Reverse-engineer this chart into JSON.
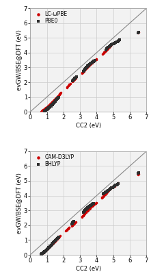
{
  "top_panel": {
    "series1_label": "PBE0",
    "series1_color": "#2d2d2d",
    "series1_marker": "s",
    "series2_label": "LC-ωPBE",
    "series2_color": "#cc0000",
    "series2_marker": "o",
    "series1_x": [
      0.85,
      0.87,
      0.9,
      0.92,
      0.95,
      0.97,
      1.0,
      1.02,
      1.05,
      1.08,
      1.1,
      1.12,
      1.15,
      1.17,
      1.2,
      1.22,
      1.25,
      1.28,
      1.3,
      1.33,
      1.35,
      1.38,
      1.4,
      1.43,
      1.45,
      1.48,
      1.5,
      1.52,
      1.55,
      1.57,
      1.6,
      1.62,
      1.65,
      1.68,
      1.7,
      2.55,
      2.58,
      2.62,
      2.65,
      2.68,
      2.72,
      2.75,
      2.78,
      3.2,
      3.25,
      3.28,
      3.3,
      3.33,
      3.35,
      3.38,
      3.4,
      3.43,
      3.45,
      3.48,
      3.5,
      3.53,
      3.55,
      3.58,
      3.6,
      3.63,
      3.65,
      3.68,
      3.7,
      3.73,
      3.75,
      3.78,
      3.8,
      3.83,
      3.85,
      3.88,
      3.9,
      4.55,
      4.6,
      4.65,
      4.7,
      4.75,
      4.8,
      4.85,
      4.9,
      4.95,
      5.0,
      5.05,
      5.1,
      5.15,
      5.2,
      5.25,
      5.3,
      5.35,
      5.4,
      6.5,
      6.55
    ],
    "series1_y": [
      0.05,
      0.06,
      0.08,
      0.1,
      0.12,
      0.14,
      0.16,
      0.18,
      0.2,
      0.23,
      0.25,
      0.27,
      0.3,
      0.32,
      0.35,
      0.37,
      0.4,
      0.43,
      0.46,
      0.49,
      0.52,
      0.55,
      0.58,
      0.62,
      0.65,
      0.68,
      0.72,
      0.75,
      0.78,
      0.82,
      0.85,
      0.88,
      0.92,
      0.95,
      0.98,
      2.1,
      2.14,
      2.18,
      2.22,
      2.26,
      2.3,
      2.34,
      2.38,
      2.75,
      2.8,
      2.84,
      2.88,
      2.92,
      2.96,
      3.0,
      3.04,
      3.07,
      3.1,
      3.13,
      3.15,
      3.18,
      3.2,
      3.22,
      3.24,
      3.26,
      3.28,
      3.3,
      3.32,
      3.34,
      3.36,
      3.38,
      3.4,
      3.42,
      3.44,
      3.46,
      3.48,
      4.2,
      4.25,
      4.3,
      4.35,
      4.4,
      4.45,
      4.5,
      4.55,
      4.58,
      4.6,
      4.62,
      4.65,
      4.68,
      4.72,
      4.75,
      4.78,
      4.82,
      4.85,
      5.35,
      5.4
    ],
    "series2_x": [
      0.65,
      0.68,
      0.7,
      0.73,
      0.75,
      0.78,
      0.8,
      0.82,
      0.85,
      0.87,
      0.9,
      0.92,
      0.95,
      0.97,
      1.0,
      1.02,
      1.05,
      1.07,
      1.1,
      1.12,
      1.15,
      1.17,
      1.2,
      1.22,
      1.25,
      1.27,
      1.3,
      1.32,
      1.35,
      1.37,
      1.4,
      1.42,
      1.45,
      1.47,
      1.5,
      1.52,
      1.55,
      1.57,
      1.6,
      1.62,
      1.65,
      1.67,
      1.7,
      1.72,
      1.75,
      1.77,
      1.8,
      1.82,
      1.85,
      2.2,
      2.23,
      2.25,
      2.28,
      2.3,
      2.33,
      2.35,
      2.38,
      2.4,
      2.55,
      2.58,
      2.6,
      2.63,
      2.65,
      2.68,
      2.7,
      2.73,
      2.75,
      3.1,
      3.13,
      3.15,
      3.18,
      3.2,
      3.23,
      3.25,
      3.28,
      3.3,
      3.33,
      3.35,
      3.38,
      3.4,
      3.43,
      3.45,
      3.48,
      3.5,
      3.53,
      3.55,
      3.57,
      3.6,
      3.62,
      3.65,
      3.67,
      3.7,
      3.72,
      3.75,
      3.77,
      3.8,
      3.82,
      3.85,
      3.87,
      3.9,
      3.92,
      3.95,
      3.97,
      4.0,
      4.35,
      4.38,
      4.4,
      4.43,
      4.45,
      4.48,
      4.5,
      4.53,
      4.55,
      4.58,
      4.6,
      4.63,
      4.65,
      4.68,
      4.7,
      4.73,
      4.75,
      4.78,
      4.8,
      4.83,
      4.85,
      4.88,
      4.9,
      5.1,
      5.15,
      5.2,
      5.25,
      5.3,
      6.5,
      6.55
    ],
    "series2_y": [
      0.03,
      0.05,
      0.07,
      0.09,
      0.11,
      0.13,
      0.15,
      0.17,
      0.19,
      0.22,
      0.24,
      0.26,
      0.28,
      0.31,
      0.33,
      0.35,
      0.38,
      0.4,
      0.43,
      0.45,
      0.48,
      0.51,
      0.53,
      0.56,
      0.58,
      0.61,
      0.64,
      0.67,
      0.7,
      0.72,
      0.75,
      0.78,
      0.81,
      0.84,
      0.87,
      0.9,
      0.93,
      0.96,
      0.99,
      1.02,
      1.05,
      1.08,
      1.11,
      1.14,
      1.17,
      1.2,
      1.23,
      1.26,
      1.3,
      1.65,
      1.68,
      1.72,
      1.75,
      1.78,
      1.82,
      1.85,
      1.88,
      1.92,
      2.05,
      2.08,
      2.12,
      2.15,
      2.18,
      2.22,
      2.25,
      2.28,
      2.32,
      2.6,
      2.63,
      2.66,
      2.69,
      2.72,
      2.75,
      2.78,
      2.82,
      2.85,
      2.88,
      2.91,
      2.94,
      2.97,
      3.0,
      3.03,
      3.06,
      3.09,
      3.12,
      3.15,
      3.17,
      3.2,
      3.22,
      3.25,
      3.27,
      3.3,
      3.32,
      3.35,
      3.37,
      3.4,
      3.42,
      3.44,
      3.46,
      3.48,
      3.5,
      3.52,
      3.54,
      3.56,
      3.9,
      3.93,
      3.96,
      3.99,
      4.02,
      4.05,
      4.08,
      4.11,
      4.14,
      4.17,
      4.2,
      4.23,
      4.26,
      4.29,
      4.32,
      4.35,
      4.38,
      4.41,
      4.44,
      4.47,
      4.5,
      4.53,
      4.56,
      4.68,
      4.72,
      4.76,
      4.8,
      4.84,
      5.35,
      5.4
    ]
  },
  "bottom_panel": {
    "series1_label": "BHLYP",
    "series1_color": "#2d2d2d",
    "series1_marker": "s",
    "series2_label": "CAM-D3LYP",
    "series2_color": "#cc0000",
    "series2_marker": "o",
    "series1_x": [
      0.65,
      0.68,
      0.7,
      0.73,
      0.75,
      0.78,
      0.8,
      0.82,
      0.85,
      0.87,
      0.9,
      0.92,
      0.95,
      0.97,
      1.0,
      1.02,
      1.05,
      1.07,
      1.1,
      1.12,
      1.15,
      1.17,
      1.2,
      1.22,
      1.25,
      1.27,
      1.3,
      1.32,
      1.35,
      1.37,
      1.4,
      1.42,
      1.45,
      1.47,
      1.5,
      1.52,
      1.55,
      1.57,
      1.6,
      1.62,
      1.65,
      1.68,
      1.7,
      2.5,
      2.53,
      2.55,
      2.58,
      2.6,
      2.63,
      3.2,
      3.23,
      3.25,
      3.28,
      3.3,
      3.33,
      3.35,
      3.38,
      3.4,
      3.43,
      3.45,
      3.48,
      3.5,
      3.53,
      3.55,
      3.57,
      3.6,
      3.62,
      3.65,
      3.68,
      3.7,
      3.73,
      3.75,
      3.78,
      3.8,
      4.4,
      4.45,
      4.5,
      4.55,
      4.6,
      4.65,
      4.7,
      4.75,
      4.8,
      4.85,
      4.9,
      4.95,
      5.0,
      5.05,
      5.1,
      5.15,
      5.2,
      5.25,
      5.3,
      6.5,
      6.55
    ],
    "series1_y": [
      0.03,
      0.05,
      0.07,
      0.09,
      0.11,
      0.13,
      0.16,
      0.18,
      0.2,
      0.22,
      0.25,
      0.27,
      0.3,
      0.32,
      0.35,
      0.37,
      0.4,
      0.43,
      0.46,
      0.49,
      0.52,
      0.55,
      0.58,
      0.61,
      0.64,
      0.67,
      0.7,
      0.73,
      0.77,
      0.8,
      0.83,
      0.86,
      0.89,
      0.92,
      0.95,
      0.98,
      1.01,
      1.04,
      1.07,
      1.1,
      1.13,
      1.16,
      1.2,
      2.08,
      2.12,
      2.16,
      2.2,
      2.24,
      2.28,
      2.88,
      2.91,
      2.95,
      2.98,
      3.01,
      3.04,
      3.07,
      3.1,
      3.13,
      3.16,
      3.18,
      3.21,
      3.23,
      3.25,
      3.27,
      3.29,
      3.31,
      3.33,
      3.35,
      3.37,
      3.39,
      3.41,
      3.43,
      3.45,
      3.47,
      4.12,
      4.16,
      4.2,
      4.24,
      4.28,
      4.32,
      4.36,
      4.4,
      4.44,
      4.48,
      4.52,
      4.55,
      4.58,
      4.62,
      4.66,
      4.7,
      4.74,
      4.78,
      4.82,
      5.5,
      5.55
    ],
    "series2_x": [
      0.65,
      0.68,
      0.7,
      0.73,
      0.75,
      0.78,
      0.8,
      0.82,
      0.85,
      0.87,
      0.9,
      0.92,
      0.95,
      0.97,
      1.0,
      1.02,
      1.05,
      1.07,
      1.1,
      1.12,
      1.15,
      1.17,
      1.2,
      1.22,
      1.25,
      1.27,
      1.3,
      1.32,
      1.35,
      1.37,
      1.4,
      1.42,
      1.45,
      1.47,
      1.5,
      1.52,
      1.55,
      1.57,
      1.6,
      1.62,
      1.65,
      1.68,
      1.7,
      1.72,
      1.75,
      1.77,
      1.8,
      2.15,
      2.18,
      2.2,
      2.23,
      2.25,
      2.28,
      2.3,
      2.33,
      2.35,
      2.5,
      2.53,
      2.55,
      2.58,
      2.6,
      2.63,
      2.65,
      2.68,
      2.7,
      2.73,
      3.1,
      3.13,
      3.15,
      3.18,
      3.2,
      3.23,
      3.25,
      3.28,
      3.3,
      3.33,
      3.35,
      3.38,
      3.4,
      3.43,
      3.45,
      3.48,
      3.5,
      3.53,
      3.55,
      3.57,
      3.6,
      3.62,
      3.65,
      3.67,
      3.7,
      3.72,
      3.75,
      3.78,
      3.8,
      3.82,
      3.85,
      3.87,
      3.9,
      3.92,
      3.95,
      3.97,
      4.0,
      4.3,
      4.33,
      4.35,
      4.38,
      4.4,
      4.43,
      4.45,
      4.48,
      4.5,
      4.53,
      4.55,
      4.58,
      4.6,
      4.63,
      4.65,
      4.68,
      4.7,
      4.73,
      4.75,
      4.78,
      4.8,
      4.83,
      4.85,
      4.88,
      4.9,
      5.1,
      5.15,
      5.2,
      5.25,
      5.3,
      6.5,
      6.55
    ],
    "series2_y": [
      0.03,
      0.05,
      0.07,
      0.09,
      0.12,
      0.14,
      0.16,
      0.18,
      0.21,
      0.23,
      0.25,
      0.28,
      0.3,
      0.33,
      0.35,
      0.38,
      0.4,
      0.43,
      0.45,
      0.48,
      0.51,
      0.54,
      0.57,
      0.6,
      0.63,
      0.66,
      0.69,
      0.72,
      0.75,
      0.78,
      0.81,
      0.84,
      0.87,
      0.9,
      0.93,
      0.96,
      0.99,
      1.02,
      1.05,
      1.08,
      1.11,
      1.14,
      1.17,
      1.2,
      1.23,
      1.26,
      1.3,
      1.62,
      1.65,
      1.68,
      1.71,
      1.74,
      1.77,
      1.8,
      1.83,
      1.87,
      1.95,
      1.98,
      2.01,
      2.04,
      2.07,
      2.1,
      2.13,
      2.16,
      2.19,
      2.22,
      2.55,
      2.58,
      2.62,
      2.65,
      2.68,
      2.72,
      2.75,
      2.78,
      2.82,
      2.85,
      2.88,
      2.91,
      2.94,
      2.97,
      3.0,
      3.03,
      3.06,
      3.09,
      3.12,
      3.14,
      3.17,
      3.2,
      3.22,
      3.25,
      3.27,
      3.3,
      3.32,
      3.35,
      3.37,
      3.39,
      3.41,
      3.43,
      3.45,
      3.47,
      3.49,
      3.51,
      3.53,
      3.85,
      3.88,
      3.91,
      3.94,
      3.97,
      4.0,
      4.03,
      4.06,
      4.09,
      4.12,
      4.15,
      4.18,
      4.21,
      4.24,
      4.27,
      4.3,
      4.33,
      4.36,
      4.39,
      4.42,
      4.45,
      4.48,
      4.51,
      4.54,
      4.57,
      4.65,
      4.7,
      4.75,
      4.8,
      4.85,
      5.42,
      5.47
    ]
  },
  "xlim": [
    0,
    7
  ],
  "ylim": [
    0,
    7
  ],
  "xticks": [
    0,
    1,
    2,
    3,
    4,
    5,
    6,
    7
  ],
  "yticks": [
    0,
    1,
    2,
    3,
    4,
    5,
    6,
    7
  ],
  "xlabel": "CC2 (eV)",
  "ylabel": "evGW/BSE@DFT (eV)",
  "diagonal_color": "#888888",
  "grid_color": "#cccccc",
  "bg_color": "#f2f2f2",
  "marker_size": 2.5,
  "font_size": 6,
  "legend_font_size": 5.5
}
